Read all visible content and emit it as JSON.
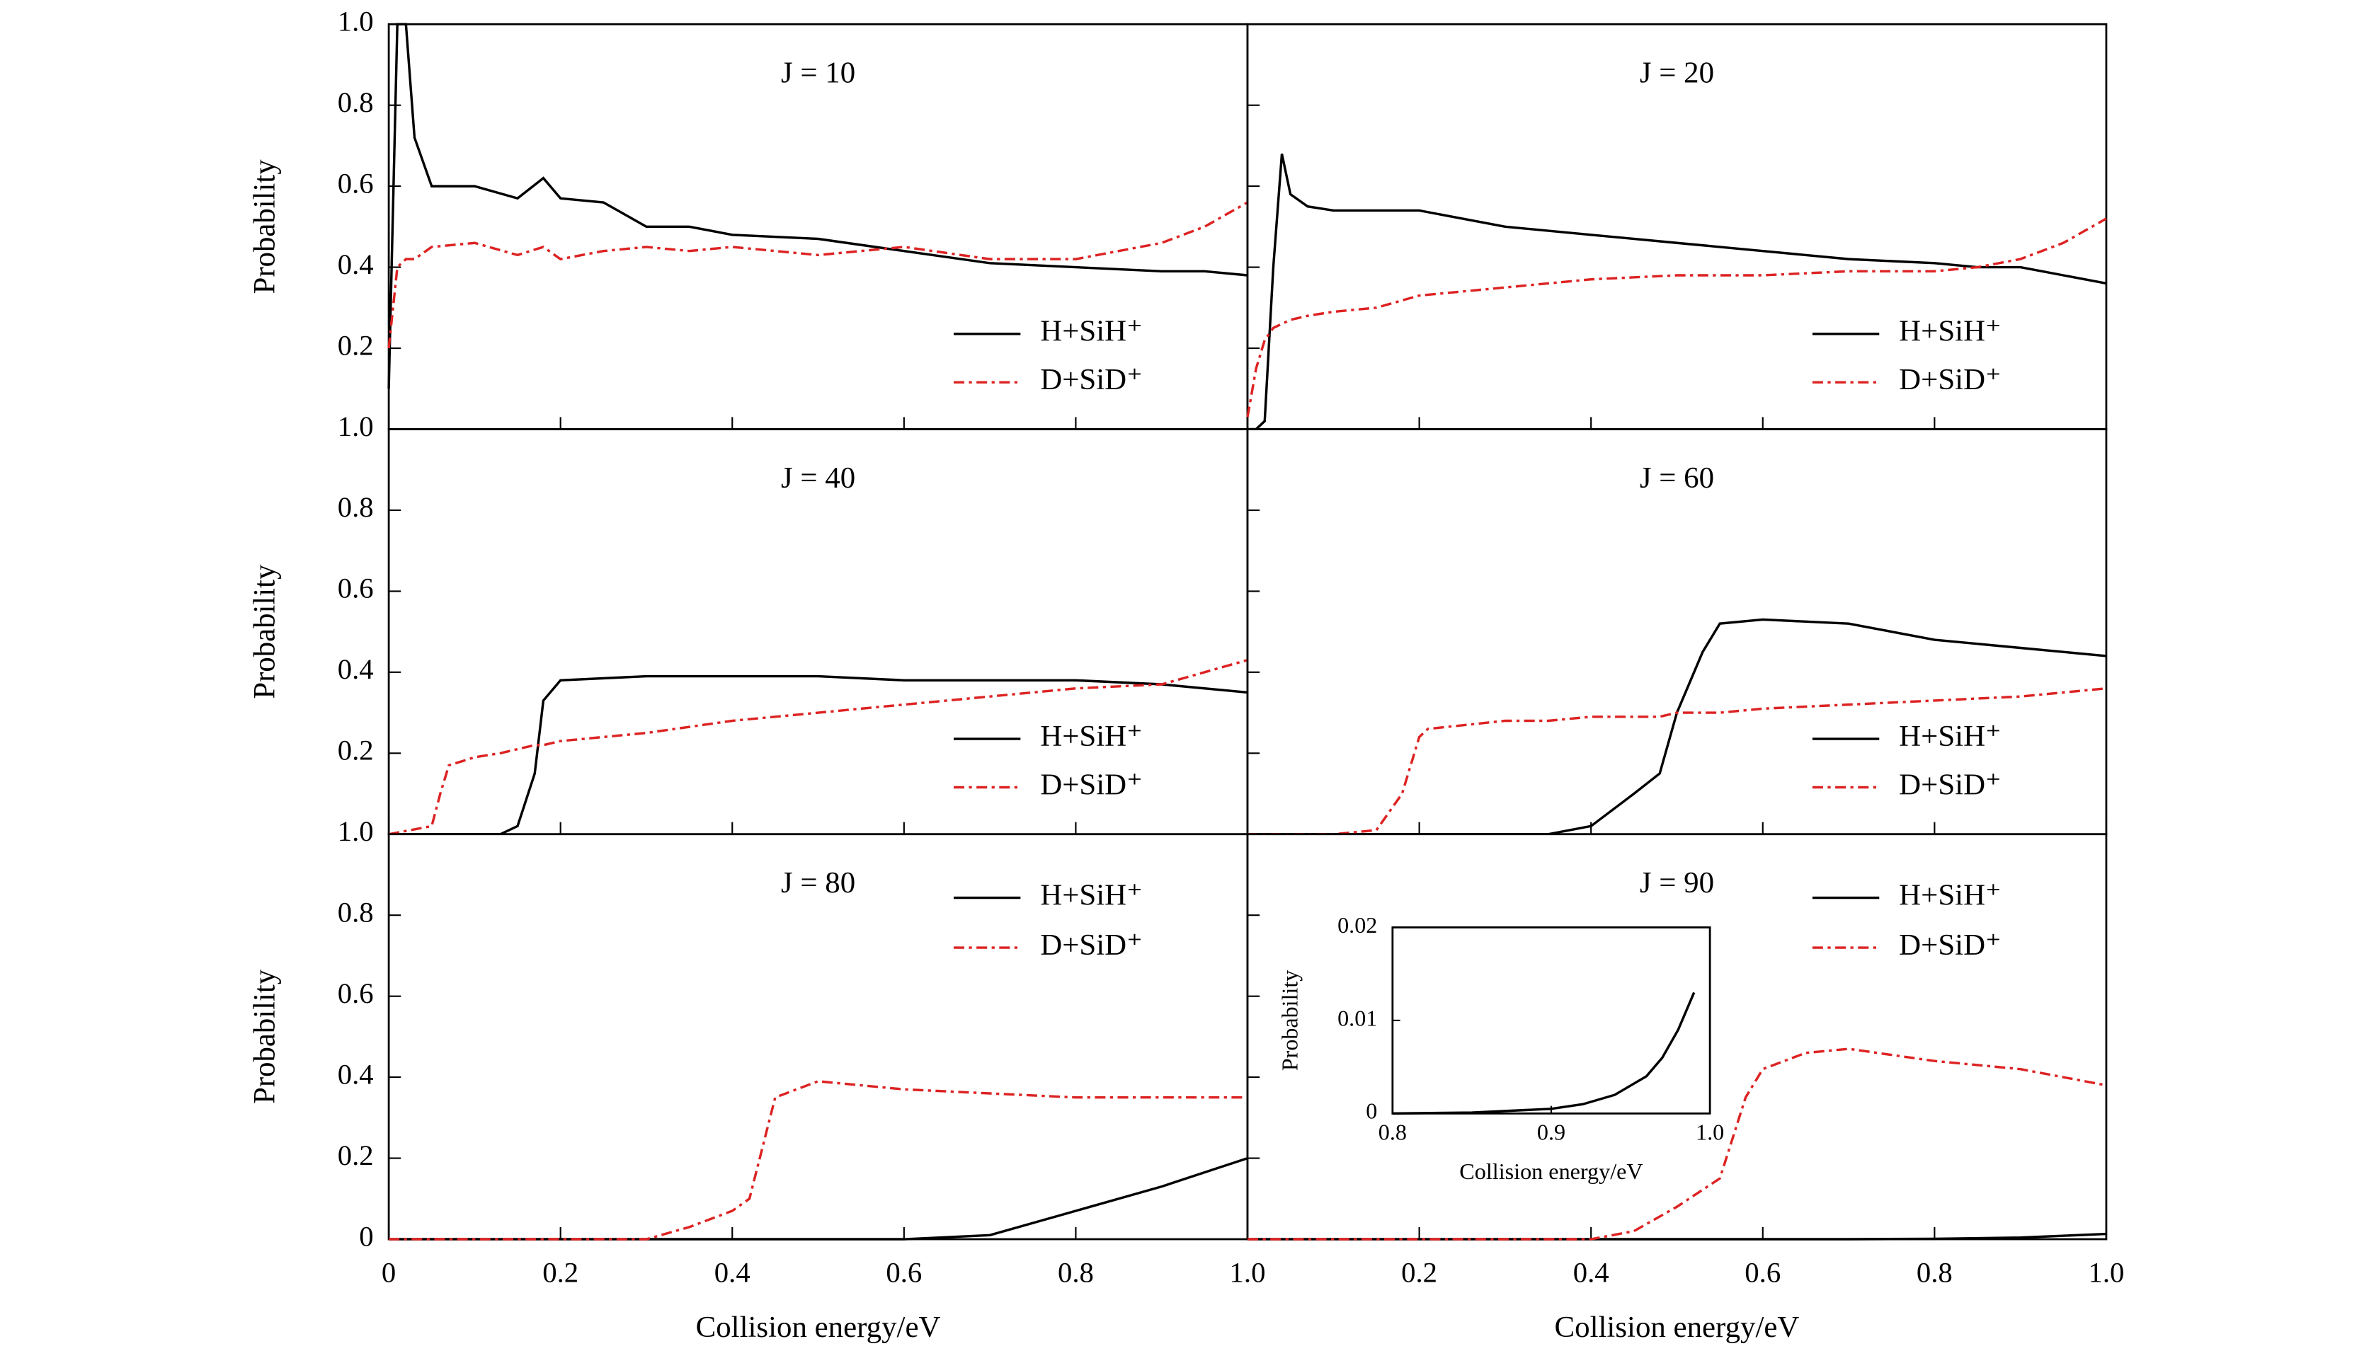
{
  "chart_data": [
    {
      "type": "line",
      "annotation": "J = 10",
      "ylabel": "Probability",
      "legend": "lower right",
      "x": [
        0,
        0.01,
        0.02,
        0.03,
        0.05,
        0.1,
        0.15,
        0.18,
        0.2,
        0.25,
        0.3,
        0.35,
        0.4,
        0.5,
        0.6,
        0.7,
        0.8,
        0.9,
        0.95,
        1.0
      ],
      "series": [
        {
          "name": "H+SiH⁺",
          "color": "#000000",
          "linestyle": "solid",
          "values": [
            0.1,
            1.0,
            1.0,
            0.72,
            0.6,
            0.6,
            0.57,
            0.62,
            0.57,
            0.56,
            0.5,
            0.5,
            0.48,
            0.47,
            0.44,
            0.41,
            0.4,
            0.39,
            0.39,
            0.38
          ]
        },
        {
          "name": "D+SiD⁺",
          "color": "#dd2222",
          "linestyle": "dashdot",
          "values": [
            0.2,
            0.4,
            0.42,
            0.42,
            0.45,
            0.46,
            0.43,
            0.45,
            0.42,
            0.44,
            0.45,
            0.44,
            0.45,
            0.43,
            0.45,
            0.42,
            0.42,
            0.46,
            0.5,
            0.56
          ]
        }
      ],
      "xlim": [
        0,
        1
      ],
      "ylim": [
        0,
        1
      ],
      "yticks": [
        0.2,
        0.4,
        0.6,
        0.8,
        {
          "value": 1,
          "label": "1.0"
        }
      ]
    },
    {
      "type": "line",
      "annotation": "J = 20",
      "legend": "lower right",
      "x": [
        0,
        0.01,
        0.02,
        0.03,
        0.04,
        0.05,
        0.07,
        0.1,
        0.15,
        0.2,
        0.3,
        0.4,
        0.5,
        0.6,
        0.7,
        0.8,
        0.85,
        0.9,
        0.95,
        1.0
      ],
      "series": [
        {
          "name": "H+SiH⁺",
          "color": "#000000",
          "linestyle": "solid",
          "values": [
            0,
            0,
            0.02,
            0.4,
            0.68,
            0.58,
            0.55,
            0.54,
            0.54,
            0.54,
            0.5,
            0.48,
            0.46,
            0.44,
            0.42,
            0.41,
            0.4,
            0.4,
            0.38,
            0.36
          ]
        },
        {
          "name": "D+SiD⁺",
          "color": "#dd2222",
          "linestyle": "dashdot",
          "values": [
            0.03,
            0.15,
            0.22,
            0.25,
            0.26,
            0.27,
            0.28,
            0.29,
            0.3,
            0.33,
            0.35,
            0.37,
            0.38,
            0.38,
            0.39,
            0.39,
            0.4,
            0.42,
            0.46,
            0.52
          ]
        }
      ],
      "xlim": [
        0,
        1
      ],
      "ylim": [
        0,
        1
      ]
    },
    {
      "type": "line",
      "annotation": "J = 40",
      "ylabel": "Probability",
      "legend": "lower right",
      "x": [
        0,
        0.05,
        0.06,
        0.07,
        0.1,
        0.13,
        0.15,
        0.17,
        0.18,
        0.2,
        0.3,
        0.4,
        0.5,
        0.6,
        0.7,
        0.8,
        0.9,
        1.0
      ],
      "series": [
        {
          "name": "H+SiH⁺",
          "color": "#000000",
          "linestyle": "solid",
          "values": [
            0,
            0,
            0,
            0,
            0,
            0,
            0.02,
            0.15,
            0.33,
            0.38,
            0.39,
            0.39,
            0.39,
            0.38,
            0.38,
            0.38,
            0.37,
            0.35
          ]
        },
        {
          "name": "D+SiD⁺",
          "color": "#dd2222",
          "linestyle": "dashdot",
          "values": [
            0,
            0.02,
            0.1,
            0.17,
            0.19,
            0.2,
            0.21,
            0.22,
            0.22,
            0.23,
            0.25,
            0.28,
            0.3,
            0.32,
            0.34,
            0.36,
            0.37,
            0.43
          ]
        }
      ],
      "xlim": [
        0,
        1
      ],
      "ylim": [
        0,
        1
      ],
      "yticks": [
        0.2,
        0.4,
        0.6,
        0.8,
        {
          "value": 1,
          "label": "1.0"
        }
      ]
    },
    {
      "type": "line",
      "annotation": "J = 60",
      "legend": "lower right",
      "x": [
        0,
        0.1,
        0.15,
        0.18,
        0.2,
        0.21,
        0.3,
        0.35,
        0.4,
        0.45,
        0.48,
        0.5,
        0.53,
        0.55,
        0.6,
        0.7,
        0.8,
        0.9,
        1.0
      ],
      "series": [
        {
          "name": "H+SiH⁺",
          "color": "#000000",
          "linestyle": "solid",
          "values": [
            0,
            0,
            0,
            0,
            0,
            0,
            0,
            0,
            0.02,
            0.1,
            0.15,
            0.3,
            0.45,
            0.52,
            0.53,
            0.52,
            0.48,
            0.46,
            0.44
          ]
        },
        {
          "name": "D+SiD⁺",
          "color": "#dd2222",
          "linestyle": "dashdot",
          "values": [
            0,
            0,
            0.01,
            0.1,
            0.24,
            0.26,
            0.28,
            0.28,
            0.29,
            0.29,
            0.29,
            0.3,
            0.3,
            0.3,
            0.31,
            0.32,
            0.33,
            0.34,
            0.36
          ]
        }
      ],
      "xlim": [
        0,
        1
      ],
      "ylim": [
        0,
        1
      ]
    },
    {
      "type": "line",
      "annotation": "J = 80",
      "ylabel": "Probability",
      "xlabel": "Collision energy/eV",
      "legend": "upper right",
      "x": [
        0,
        0.3,
        0.35,
        0.4,
        0.42,
        0.45,
        0.5,
        0.6,
        0.7,
        0.8,
        0.9,
        1.0
      ],
      "series": [
        {
          "name": "H+SiH⁺",
          "color": "#000000",
          "linestyle": "solid",
          "values": [
            0,
            0,
            0,
            0,
            0,
            0,
            0,
            0,
            0.01,
            0.07,
            0.13,
            0.2
          ]
        },
        {
          "name": "D+SiD⁺",
          "color": "#dd2222",
          "linestyle": "dashdot",
          "values": [
            0,
            0,
            0.03,
            0.07,
            0.1,
            0.35,
            0.39,
            0.37,
            0.36,
            0.35,
            0.35,
            0.35
          ]
        }
      ],
      "xlim": [
        0,
        1
      ],
      "ylim": [
        0,
        1
      ],
      "xticks": [
        0,
        0.2,
        0.4,
        0.6,
        0.8,
        {
          "value": 1,
          "label": "1.0"
        }
      ],
      "yticks": [
        0,
        0.2,
        0.4,
        0.6,
        0.8,
        {
          "value": 1,
          "label": "1.0"
        }
      ]
    },
    {
      "type": "line",
      "annotation": "J = 90",
      "xlabel": "Collision energy/eV",
      "legend": "upper right",
      "x": [
        0,
        0.4,
        0.45,
        0.5,
        0.55,
        0.58,
        0.6,
        0.65,
        0.7,
        0.8,
        0.9,
        1.0
      ],
      "series": [
        {
          "name": "H+SiH⁺",
          "color": "#000000",
          "linestyle": "solid",
          "values": [
            0,
            0,
            0,
            0,
            0,
            0,
            0,
            0,
            0,
            0.001,
            0.004,
            0.013
          ]
        },
        {
          "name": "D+SiD⁺",
          "color": "#dd2222",
          "linestyle": "dashdot",
          "values": [
            0,
            0,
            0.02,
            0.08,
            0.15,
            0.35,
            0.42,
            0.46,
            0.47,
            0.44,
            0.42,
            0.38
          ]
        }
      ],
      "xlim": [
        0,
        1
      ],
      "ylim": [
        0,
        1
      ],
      "xticks": [
        0.2,
        0.4,
        0.6,
        0.8,
        {
          "value": 1,
          "label": "1.0"
        }
      ]
    },
    {
      "type": "line",
      "ylabel": "Probability",
      "xlabel": "Collision energy/eV",
      "x": [
        0.8,
        0.85,
        0.9,
        0.92,
        0.94,
        0.96,
        0.97,
        0.98,
        0.99
      ],
      "series": [
        {
          "color": "#000000",
          "linestyle": "solid",
          "values": [
            0,
            0.0001,
            0.0005,
            0.001,
            0.002,
            0.004,
            0.006,
            0.009,
            0.013
          ]
        }
      ],
      "xlim": [
        0.8,
        1.0
      ],
      "ylim": [
        0,
        0.02
      ],
      "xticks": [
        0.8,
        0.9,
        {
          "value": 1,
          "label": "1.0"
        }
      ],
      "yticks": [
        0,
        0.01,
        0.02
      ]
    }
  ]
}
